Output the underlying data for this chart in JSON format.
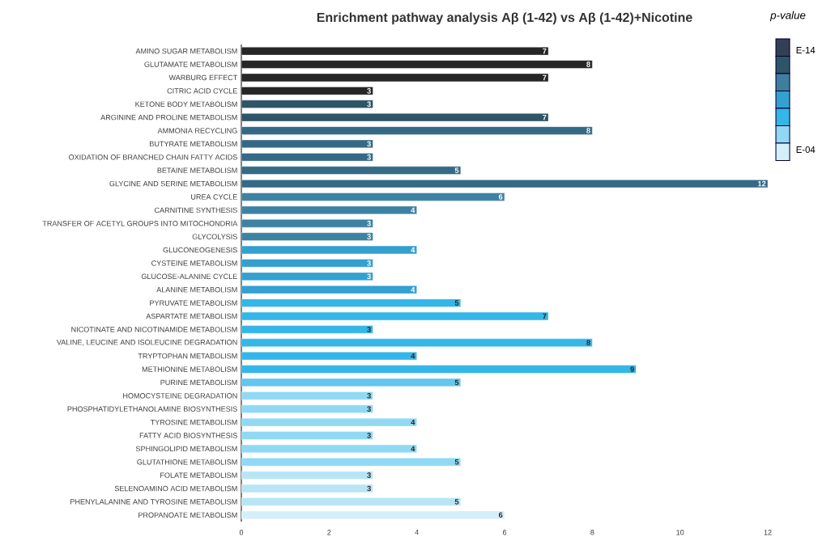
{
  "chart_data": {
    "type": "bar",
    "orientation": "horizontal",
    "title": "Enrichment pathway analysis Aβ (1-42) vs Aβ (1-42)+Nicotine",
    "legend_title": "p-value",
    "annotations": [
      "E-14",
      "E-04"
    ],
    "categories": [
      "AMINO SUGAR METABOLISM",
      "GLUTAMATE METABOLISM",
      "WARBURG EFFECT",
      "CITRIC ACID CYCLE",
      "KETONE BODY METABOLISM",
      "ARGININE AND PROLINE METABOLISM",
      "AMMONIA RECYCLING",
      "BUTYRATE METABOLISM",
      "OXIDATION OF BRANCHED CHAIN FATTY ACIDS",
      "BETAINE METABOLISM",
      "GLYCINE AND SERINE METABOLISM",
      "UREA CYCLE",
      "CARNITINE SYNTHESIS",
      "TRANSFER OF ACETYL GROUPS INTO MITOCHONDRIA",
      "GLYCOLYSIS",
      "GLUCONEOGENESIS",
      "CYSTEINE METABOLISM",
      "GLUCOSE-ALANINE CYCLE",
      "ALANINE METABOLISM",
      "PYRUVATE METABOLISM",
      "ASPARTATE METABOLISM",
      "NICOTINATE AND NICOTINAMIDE METABOLISM",
      "VALINE, LEUCINE AND ISOLEUCINE DEGRADATION",
      "TRYPTOPHAN METABOLISM",
      "METHIONINE METABOLISM",
      "PURINE METABOLISM",
      "HOMOCYSTEINE DEGRADATION",
      "PHOSPHATIDYLETHANOLAMINE BIOSYNTHESIS",
      "TYROSINE METABOLISM",
      "FATTY ACID BIOSYNTHESIS",
      "SPHINGOLIPID METABOLISM",
      "GLUTATHIONE METABOLISM",
      "FOLATE METABOLISM",
      "SELENOAMINO ACID METABOLISM",
      "PHENYLALANINE AND TYROSINE METABOLISM",
      "PROPANOATE METABOLISM"
    ],
    "values": [
      7,
      8,
      7,
      3,
      3,
      7,
      8,
      3,
      3,
      5,
      12,
      6,
      4,
      3,
      3,
      4,
      3,
      3,
      4,
      5,
      7,
      3,
      8,
      4,
      9,
      5,
      3,
      3,
      4,
      3,
      4,
      5,
      3,
      3,
      5,
      6
    ],
    "colors": [
      "#262626",
      "#262626",
      "#262626",
      "#262626",
      "#2f5467",
      "#2f5467",
      "#356a86",
      "#356a86",
      "#356a86",
      "#356a86",
      "#356a86",
      "#3e82a3",
      "#3e82a3",
      "#3e82a3",
      "#3e82a3",
      "#33a0d0",
      "#33a0d0",
      "#33a0d0",
      "#33a0d0",
      "#35b6e8",
      "#35b6e8",
      "#35b6e8",
      "#35b6e8",
      "#35b6e8",
      "#35b6e8",
      "#62c6ee",
      "#8fd9f4",
      "#8fd9f4",
      "#8fd9f4",
      "#8fd9f4",
      "#8fd9f4",
      "#8fd9f4",
      "#b8e5f6",
      "#b8e5f6",
      "#b8e5f6",
      "#d4eff9"
    ],
    "xlim": [
      0,
      12
    ],
    "xticks": [
      0,
      2,
      4,
      6,
      8,
      10,
      12
    ],
    "data_labels": true
  }
}
